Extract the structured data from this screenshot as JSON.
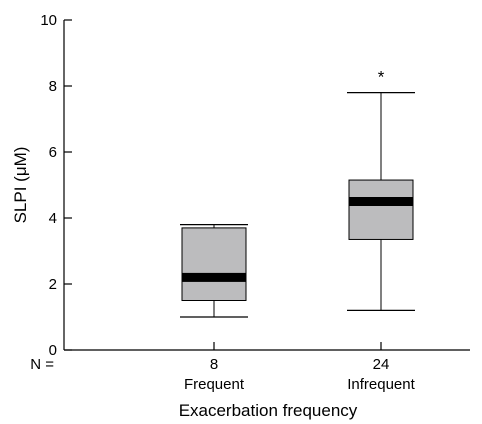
{
  "chart_data": {
    "type": "box",
    "title": "",
    "xlabel": "Exacerbation frequency",
    "ylabel": "SLPI (μM)",
    "ylim": [
      0,
      10
    ],
    "yticks": [
      0,
      2,
      4,
      6,
      8,
      10
    ],
    "n_prefix": "N =",
    "colors": {
      "box_fill": "#bcbcbe",
      "stroke": "#000000",
      "median": "#000000"
    },
    "groups": [
      {
        "category": "Frequent",
        "n": "8",
        "min": 1.0,
        "q1": 1.5,
        "median": 2.2,
        "q3": 3.7,
        "max": 3.8,
        "annotation": ""
      },
      {
        "category": "Infrequent",
        "n": "24",
        "min": 1.2,
        "q1": 3.35,
        "median": 4.5,
        "q3": 5.15,
        "max": 7.8,
        "annotation": "*"
      }
    ]
  }
}
